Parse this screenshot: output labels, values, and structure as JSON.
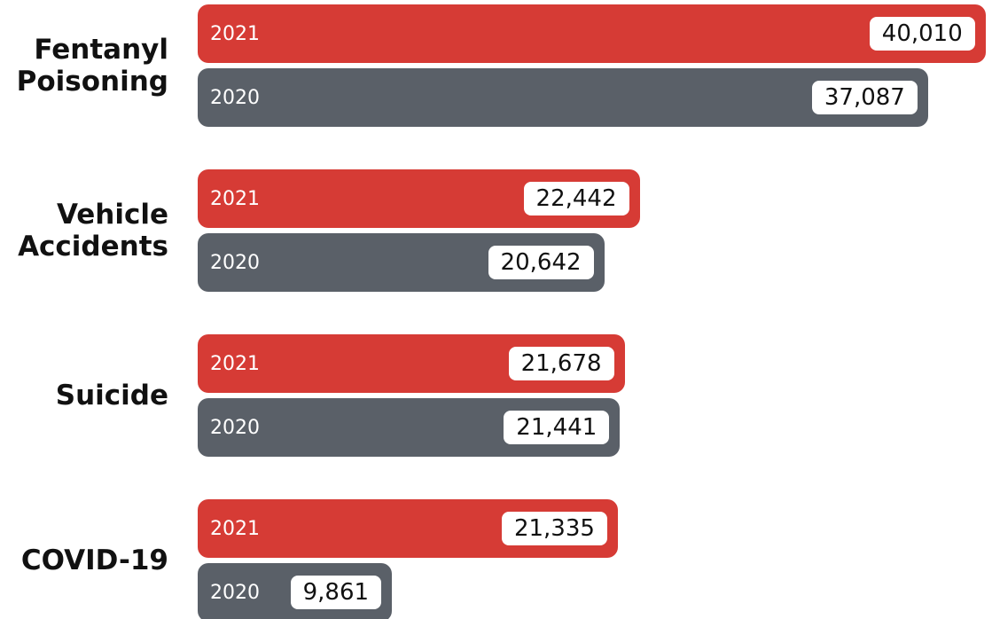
{
  "chart_data": {
    "type": "bar",
    "orientation": "horizontal",
    "categories": [
      "Fentanyl Poisoning",
      "Vehicle Accidents",
      "Suicide",
      "COVID-19"
    ],
    "series": [
      {
        "name": "2021",
        "color": "#d63b35",
        "values": [
          40010,
          22442,
          21678,
          21335
        ],
        "value_labels": [
          "40,010",
          "22,442",
          "21,678",
          "21,335"
        ]
      },
      {
        "name": "2020",
        "color": "#5a6068",
        "values": [
          37087,
          20642,
          21441,
          9861
        ],
        "value_labels": [
          "37,087",
          "20,642",
          "21,441",
          "9,861"
        ]
      }
    ],
    "xlim": [
      0,
      40200
    ]
  }
}
